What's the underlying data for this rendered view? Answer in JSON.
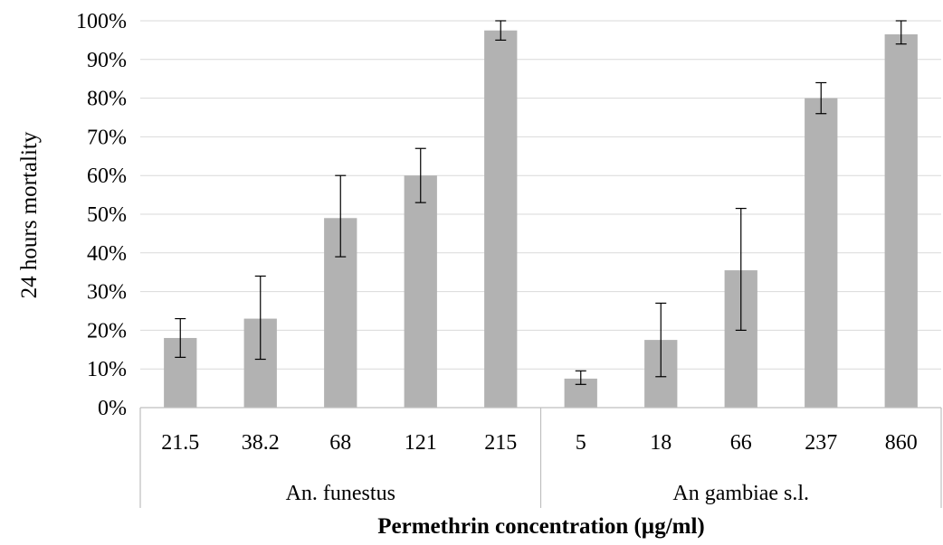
{
  "chart_data": {
    "type": "bar",
    "ylabel": "24 hours mortality",
    "xlabel": "Permethrin concentration (µg/ml)",
    "ylim": [
      0,
      100
    ],
    "ytick_step": 10,
    "ytick_suffix": "%",
    "grid": true,
    "bar_color": "#b2b2b2",
    "groups": [
      {
        "name": "An. funestus",
        "categories": [
          "21.5",
          "38.2",
          "68",
          "121",
          "215"
        ],
        "values": [
          18,
          23,
          49,
          60,
          97.5
        ],
        "error_low": [
          13,
          12.5,
          39,
          53,
          95
        ],
        "error_high": [
          23,
          34,
          60,
          67,
          100
        ]
      },
      {
        "name": "An gambiae s.l.",
        "categories": [
          "5",
          "18",
          "66",
          "237",
          "860"
        ],
        "values": [
          7.5,
          17.5,
          35.5,
          80,
          96.5
        ],
        "error_low": [
          6,
          8,
          20,
          76,
          94
        ],
        "error_high": [
          9.5,
          27,
          51.5,
          84,
          100
        ]
      }
    ]
  }
}
